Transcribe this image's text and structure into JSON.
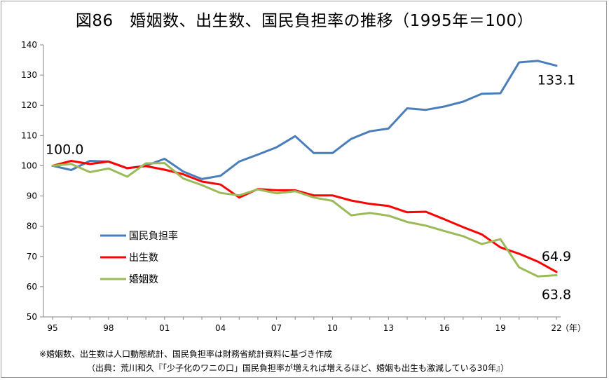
{
  "chart_data": {
    "type": "line",
    "title": "図86　婚姻数、出生数、国民負担率の推移（1995年＝100）",
    "xlabel": "（年）",
    "ylabel": "",
    "ylim": [
      50,
      140
    ],
    "yticks": [
      50,
      60,
      70,
      80,
      90,
      100,
      110,
      120,
      130,
      140
    ],
    "x": [
      1995,
      1996,
      1997,
      1998,
      1999,
      2000,
      2001,
      2002,
      2003,
      2004,
      2005,
      2006,
      2007,
      2008,
      2009,
      2010,
      2011,
      2012,
      2013,
      2014,
      2015,
      2016,
      2017,
      2018,
      2019,
      2020,
      2021,
      2022
    ],
    "xticks": [
      {
        "x": 1995,
        "label": "95"
      },
      {
        "x": 1998,
        "label": "98"
      },
      {
        "x": 2001,
        "label": "01"
      },
      {
        "x": 2004,
        "label": "04"
      },
      {
        "x": 2007,
        "label": "07"
      },
      {
        "x": 2010,
        "label": "10"
      },
      {
        "x": 2013,
        "label": "13"
      },
      {
        "x": 2016,
        "label": "16"
      },
      {
        "x": 2019,
        "label": "19"
      },
      {
        "x": 2022,
        "label": "22"
      }
    ],
    "grid": false,
    "legend_position": "left-bottom",
    "series": [
      {
        "name": "国民負担率",
        "color": "#4a7ebb",
        "values": [
          100.0,
          98.6,
          101.6,
          101.4,
          99.2,
          100.0,
          102.3,
          98.1,
          95.6,
          96.7,
          101.4,
          103.7,
          106.1,
          109.8,
          104.2,
          104.2,
          108.9,
          111.4,
          112.3,
          119.0,
          118.5,
          119.6,
          121.2,
          123.8,
          124.0,
          134.2,
          134.7,
          133.1
        ]
      },
      {
        "name": "出生数",
        "color": "#ff0000",
        "values": [
          100.0,
          101.6,
          100.6,
          101.4,
          99.2,
          99.9,
          98.7,
          97.2,
          94.8,
          93.8,
          89.5,
          92.3,
          91.9,
          91.9,
          90.2,
          90.2,
          88.5,
          87.4,
          86.7,
          84.6,
          84.8,
          82.3,
          79.7,
          77.3,
          73.0,
          70.9,
          68.3,
          64.9
        ]
      },
      {
        "name": "婚姻数",
        "color": "#9bbb59",
        "values": [
          100.0,
          100.6,
          97.9,
          99.1,
          96.4,
          100.8,
          100.9,
          95.8,
          93.6,
          91.0,
          90.2,
          92.2,
          90.9,
          91.6,
          89.5,
          88.4,
          83.6,
          84.4,
          83.5,
          81.4,
          80.2,
          78.4,
          76.7,
          74.1,
          75.7,
          66.4,
          63.4,
          63.8
        ]
      }
    ],
    "annotations": [
      {
        "text": "100.0",
        "x": 1995,
        "y": 100.0
      },
      {
        "text": "133.1",
        "x": 2022,
        "y": 133.1
      },
      {
        "text": "64.9",
        "x": 2022,
        "y": 64.9
      },
      {
        "text": "63.8",
        "x": 2022,
        "y": 63.8
      }
    ]
  },
  "footnotes": {
    "note1": "※婚姻数、出生数は人口動態統計、国民負担率は財務省統計資料に基づき作成",
    "note2": "（出典：荒川和久『「少子化のワニの口」国民負担率が増えれば増えるほど、婚姻も出生も激減している30年』）"
  }
}
